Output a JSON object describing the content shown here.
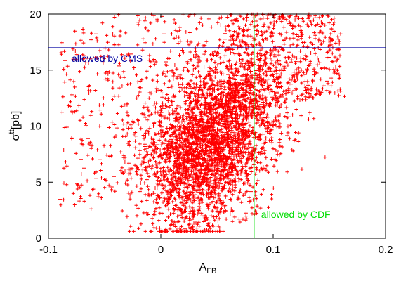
{
  "chart_data": {
    "type": "scatter",
    "title": "",
    "xlabel": {
      "main": "A",
      "sub": "FB"
    },
    "ylabel": {
      "main": "σ",
      "sup": "tt",
      "suffix": "[pb]"
    },
    "xlim": [
      -0.1,
      0.2
    ],
    "ylim": [
      0,
      20
    ],
    "xticks": [
      -0.1,
      0,
      0.1,
      0.2
    ],
    "xtick_labels": [
      "-0.1",
      "0",
      "0.1",
      "0.2"
    ],
    "yticks": [
      0,
      5,
      10,
      15,
      20
    ],
    "ytick_labels": [
      "0",
      "5",
      "10",
      "15",
      "20"
    ],
    "grid": false,
    "scatter_color": "#ff0000",
    "marker": "plus",
    "distribution_note_for_generation": null,
    "reference_lines": [
      {
        "orientation": "horizontal",
        "value": 17.0,
        "color": "#0000a0",
        "label": "allowed by CMS"
      },
      {
        "orientation": "vertical",
        "value": 0.083,
        "color": "#00dd00",
        "label": "allowed by CDF"
      }
    ],
    "series": [
      {
        "values": []
      }
    ]
  }
}
